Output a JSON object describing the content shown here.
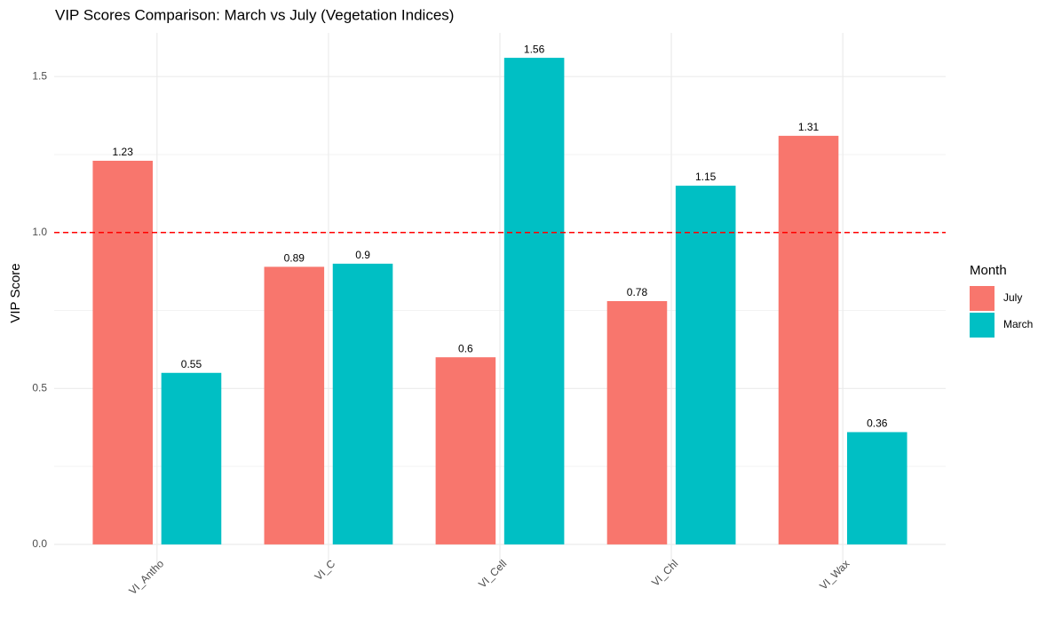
{
  "chart_data": {
    "type": "bar",
    "title": "VIP Scores Comparison: March vs July (Vegetation Indices)",
    "y_label": "VIP Score",
    "legend_title": "Month",
    "categories": [
      "VI_Antho",
      "VI_C",
      "VI_Cell",
      "VI_Chl",
      "VI_Wax"
    ],
    "series": [
      {
        "name": "July",
        "color": "#F8766D",
        "values": [
          1.23,
          0.89,
          0.6,
          0.78,
          1.31
        ]
      },
      {
        "name": "March",
        "color": "#00BFC4",
        "values": [
          0.55,
          0.9,
          1.56,
          1.15,
          0.36
        ]
      }
    ],
    "ylim": [
      -0.08,
      1.64
    ],
    "yticks": [
      {
        "value": 0,
        "label": "0.0"
      },
      0.5,
      {
        "value": 1,
        "label": "1.0"
      },
      1.5
    ],
    "yminor": [
      0.25,
      0.75,
      1.25
    ],
    "hline": {
      "value": 1,
      "color": "#FF0000"
    },
    "grid": true,
    "legend": "right"
  }
}
